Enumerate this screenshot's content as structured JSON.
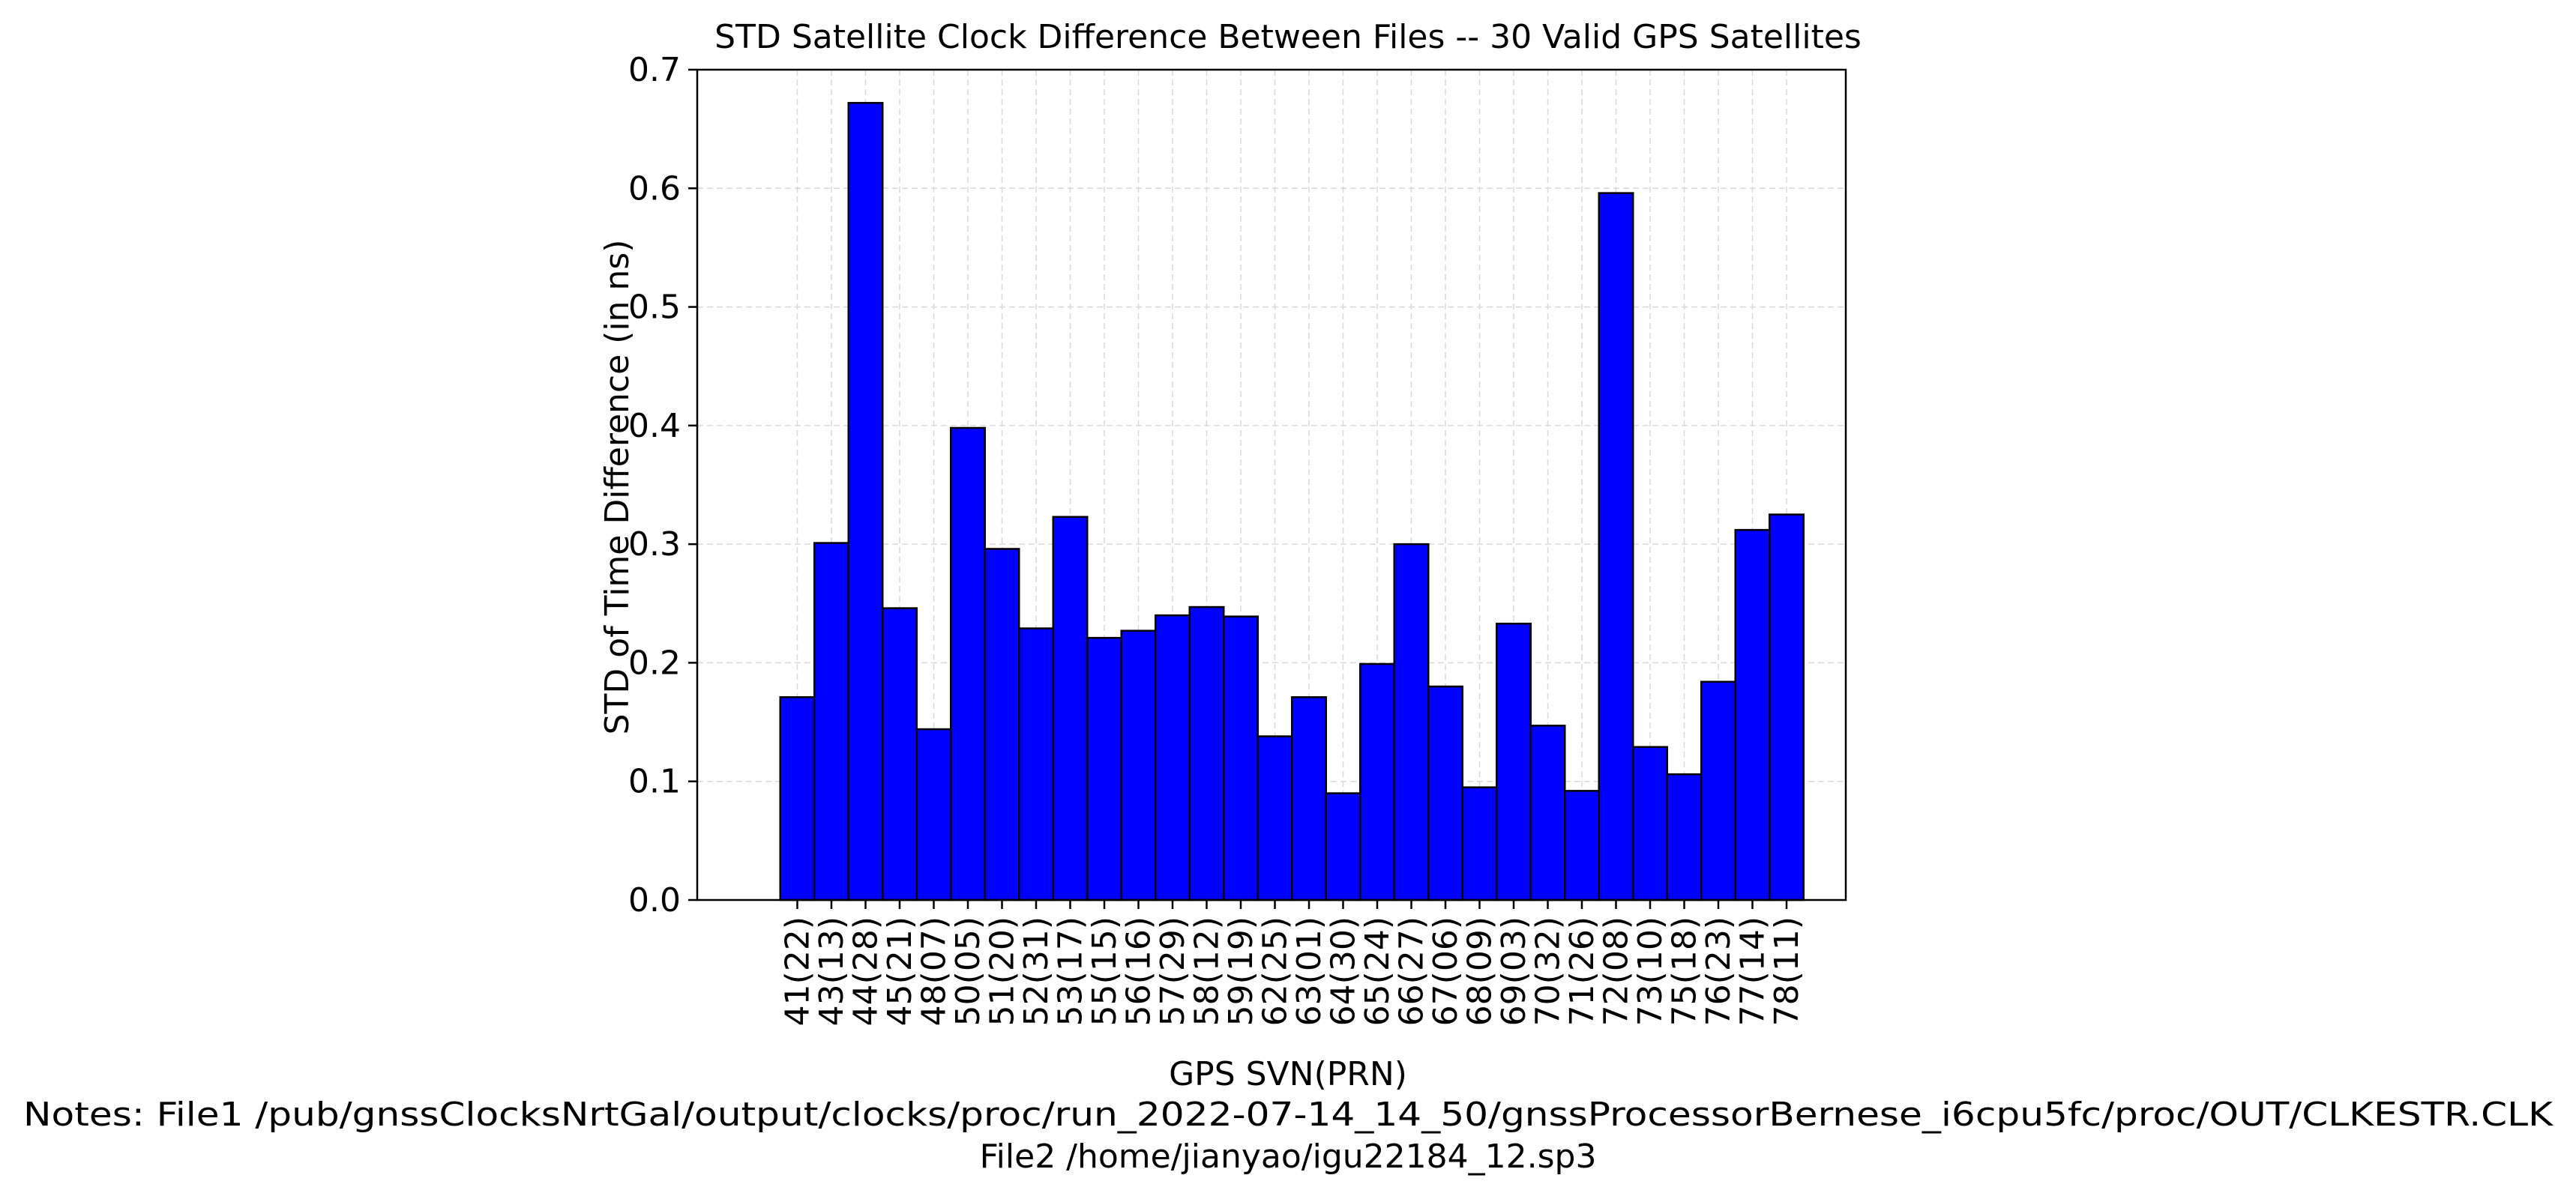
{
  "chart_data": {
    "type": "bar",
    "title": "STD Satellite Clock Difference Between Files -- 30 Valid GPS Satellites",
    "xlabel": "GPS SVN(PRN)",
    "ylabel": "STD of Time Difference (in ns)",
    "categories": [
      "41(22)",
      "43(13)",
      "44(28)",
      "45(21)",
      "48(07)",
      "50(05)",
      "51(20)",
      "52(31)",
      "53(17)",
      "55(15)",
      "56(16)",
      "57(29)",
      "58(12)",
      "59(19)",
      "62(25)",
      "63(01)",
      "64(30)",
      "65(24)",
      "66(27)",
      "67(06)",
      "68(09)",
      "69(03)",
      "70(32)",
      "71(26)",
      "72(08)",
      "73(10)",
      "75(18)",
      "76(23)",
      "77(14)",
      "78(11)"
    ],
    "values": [
      0.171,
      0.301,
      0.672,
      0.246,
      0.144,
      0.398,
      0.296,
      0.229,
      0.323,
      0.221,
      0.227,
      0.24,
      0.247,
      0.239,
      0.138,
      0.171,
      0.09,
      0.199,
      0.3,
      0.18,
      0.095,
      0.233,
      0.147,
      0.092,
      0.596,
      0.129,
      0.106,
      0.184,
      0.312,
      0.325
    ],
    "ylim": [
      0,
      0.7
    ],
    "yticks": [
      "0.0",
      "0.1",
      "0.2",
      "0.3",
      "0.4",
      "0.5",
      "0.6",
      "0.7"
    ],
    "grid": true,
    "bar_color": "#0000ff",
    "edge_color": "#000000",
    "grid_color": "#d9d9d9"
  },
  "notes": {
    "line1": "Notes: File1 /pub/gnssClocksNrtGal/output/clocks/proc/run_2022-07-14_14_50/gnssProcessorBernese_i6cpu5fc/proc/OUT/CLKESTR.CLK",
    "line2": "File2 /home/jianyao/igu22184_12.sp3"
  }
}
